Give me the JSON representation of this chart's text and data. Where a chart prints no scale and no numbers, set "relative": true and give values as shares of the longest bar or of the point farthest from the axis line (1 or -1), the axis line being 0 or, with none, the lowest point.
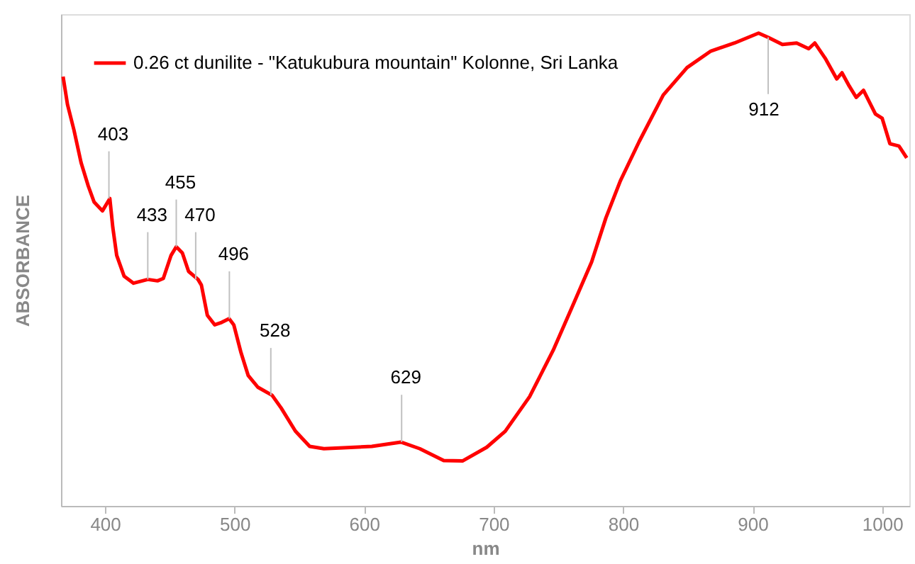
{
  "chart_data": {
    "type": "line",
    "xlabel": "nm",
    "ylabel": "ABSORBANCE",
    "relative": true,
    "xlim": [
      366,
      1021
    ],
    "xticks": [
      400,
      500,
      600,
      700,
      800,
      900,
      1000
    ],
    "grid": false,
    "legend": "top left",
    "line_style": "solid",
    "marker": "none",
    "series": [
      {
        "name": "0.26 ct dunilite - \"Katukubura mountain\"  Kolonne, Sri Lanka",
        "color": "#ff0000",
        "x": [
          367.6,
          371,
          376,
          381.5,
          387,
          391.5,
          398,
          403.7,
          406,
          409,
          414.7,
          422,
          433,
          440.5,
          445,
          451,
          455,
          459.7,
          464.5,
          471.8,
          474.4,
          479,
          484.7,
          490,
          495.8,
          499.4,
          505,
          510.5,
          518,
          529,
          536,
          547,
          558,
          569,
          584,
          606,
          628.4,
          643,
          661.5,
          676,
          694.7,
          709,
          727.8,
          746,
          761,
          775.7,
          786.7,
          797.8,
          812.5,
          831,
          849.4,
          867.8,
          886,
          904.6,
          912,
          923,
          934,
          943.3,
          948,
          956,
          965,
          969,
          974.6,
          980,
          985.6,
          994.8,
          1000,
          1006,
          1013,
          1019
        ],
        "values": [
          0.908,
          0.849,
          0.795,
          0.726,
          0.677,
          0.643,
          0.624,
          0.65,
          0.589,
          0.53,
          0.486,
          0.471,
          0.479,
          0.476,
          0.481,
          0.53,
          0.548,
          0.535,
          0.496,
          0.479,
          0.467,
          0.403,
          0.383,
          0.388,
          0.396,
          0.383,
          0.324,
          0.276,
          0.251,
          0.234,
          0.207,
          0.158,
          0.126,
          0.121,
          0.123,
          0.126,
          0.135,
          0.121,
          0.096,
          0.095,
          0.124,
          0.158,
          0.231,
          0.329,
          0.423,
          0.516,
          0.609,
          0.687,
          0.771,
          0.869,
          0.927,
          0.962,
          0.979,
          1.0,
          0.991,
          0.976,
          0.979,
          0.967,
          0.979,
          0.947,
          0.903,
          0.916,
          0.888,
          0.864,
          0.879,
          0.829,
          0.82,
          0.766,
          0.761,
          0.736
        ]
      }
    ],
    "annotations": [
      {
        "text": "403",
        "x": 403,
        "y": 0.65
      },
      {
        "text": "433",
        "x": 433,
        "y": 0.479
      },
      {
        "text": "455",
        "x": 455,
        "y": 0.548
      },
      {
        "text": "470",
        "x": 470,
        "y": 0.479
      },
      {
        "text": "496",
        "x": 496,
        "y": 0.396
      },
      {
        "text": "528",
        "x": 528,
        "y": 0.234
      },
      {
        "text": "629",
        "x": 629,
        "y": 0.135
      },
      {
        "text": "912",
        "x": 912,
        "y": 0.991
      }
    ]
  }
}
